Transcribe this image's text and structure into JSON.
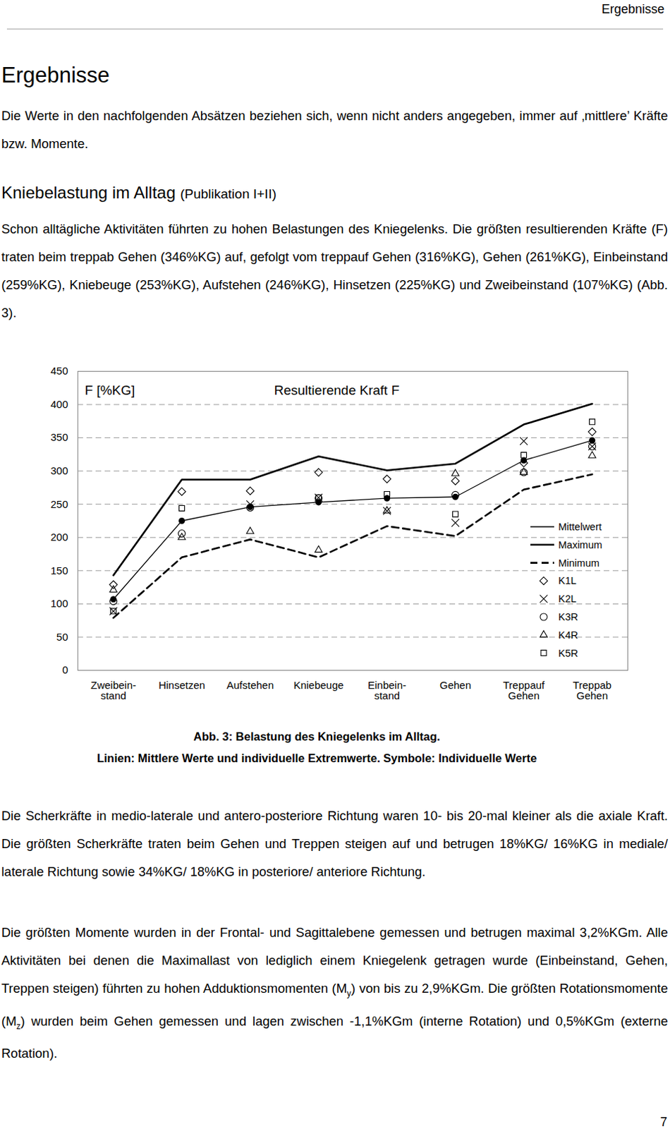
{
  "document": {
    "header": "Ergebnisse",
    "title": "Ergebnisse",
    "intro": "Die Werte in den nachfolgenden Absätzen beziehen sich, wenn nicht anders angegeben, immer auf ‚mittlere’ Kräfte bzw. Momente.",
    "section": {
      "title": "Kniebelastung im Alltag",
      "note": "(Publikation I+II)"
    },
    "paragraph_1": "Schon alltägliche Aktivitäten führten zu hohen Belastungen des Kniegelenks. Die größten resultierenden Kräfte (F) traten beim treppab Gehen (346%KG) auf, gefolgt vom treppauf Gehen (316%KG), Gehen (261%KG), Einbeinstand (259%KG), Kniebeuge (253%KG), Aufstehen (246%KG), Hinsetzen (225%KG) und Zweibeinstand (107%KG) (Abb. 3).",
    "caption": [
      "Abb. 3: Belastung des Kniegelenks im Alltag.",
      "Linien: Mittlere Werte und individuelle Extremwerte. Symbole: Individuelle Werte"
    ],
    "paragraphs_after": [
      [
        "Die Scherkräfte in medio-laterale und antero-posteriore Richtung waren 10- bis 20-mal kleiner als die axiale Kraft. Die größten Scherkräfte traten beim Gehen und Treppen steigen auf und betrugen 18%KG/ 16%KG in mediale/ laterale Richtung sowie 34%KG/ 18%KG in posteriore/ anteriore Richtung."
      ],
      [
        "Die größten Momente wurden in der Frontal- und Sagittalebene gemessen und betrugen maximal 3,2%KGm. Alle Aktivitäten bei denen die Maximallast von lediglich einem Kniegelenk getragen wurde (Einbeinstand, Gehen, Treppen steigen) führten zu hohen Adduktionsmomenten (M",
        {
          "sub": "y"
        },
        ") von bis zu 2,9%KGm. Die größten Rotationsmomente (M",
        {
          "sub": "z"
        },
        ") wurden beim Gehen gemessen und lagen zwischen -1,1%KGm (interne Rotation) und 0,5%KGm (externe Rotation)."
      ]
    ],
    "page_number": "7"
  },
  "chart_data": {
    "type": "line",
    "title": "Resultierende Kraft F",
    "y_label": "F [%KG]",
    "categories": [
      "Zweibein-\nstand",
      "Hinsetzen",
      "Aufstehen",
      "Kniebeuge",
      "Einbein-\nstand",
      "Gehen",
      "Treppauf\nGehen",
      "Treppab\nGehen"
    ],
    "ylim": [
      0,
      450
    ],
    "yticks": [
      0,
      50,
      100,
      150,
      200,
      250,
      300,
      350,
      400,
      450
    ],
    "grid": true,
    "legend": "lower-right",
    "series": [
      {
        "name": "Mittelwert",
        "type": "line",
        "line_style": "solid",
        "marker": "dot",
        "color": "#000000",
        "values": [
          107,
          225,
          246,
          253,
          259,
          261,
          316,
          346
        ]
      },
      {
        "name": "Maximum",
        "type": "line",
        "line_style": "solid",
        "marker": "none",
        "color": "#000000",
        "values": [
          143,
          287,
          287,
          322,
          301,
          311,
          370,
          401
        ]
      },
      {
        "name": "Minimum",
        "type": "line",
        "line_style": "dashed",
        "marker": "none",
        "color": "#000000",
        "values": [
          79,
          170,
          197,
          170,
          217,
          202,
          272,
          295
        ]
      },
      {
        "name": "K1L",
        "type": "scatter",
        "marker": "diamond",
        "color": "#000000",
        "values": [
          129,
          269,
          270,
          298,
          288,
          285,
          312,
          359
        ]
      },
      {
        "name": "K2L",
        "type": "scatter",
        "marker": "x",
        "color": "#000000",
        "values": [
          89,
          null,
          250,
          260,
          240,
          222,
          345,
          337
        ]
      },
      {
        "name": "K3R",
        "type": "scatter",
        "marker": "circle",
        "color": "#000000",
        "values": [
          104,
          206,
          245,
          259,
          null,
          264,
          298,
          337
        ]
      },
      {
        "name": "K4R",
        "type": "scatter",
        "marker": "triangle",
        "color": "#000000",
        "values": [
          121,
          200,
          209,
          181,
          240,
          296,
          298,
          323
        ]
      },
      {
        "name": "K5R",
        "type": "scatter",
        "marker": "square",
        "color": "#000000",
        "values": [
          89,
          244,
          null,
          260,
          265,
          235,
          324,
          374
        ]
      }
    ]
  }
}
